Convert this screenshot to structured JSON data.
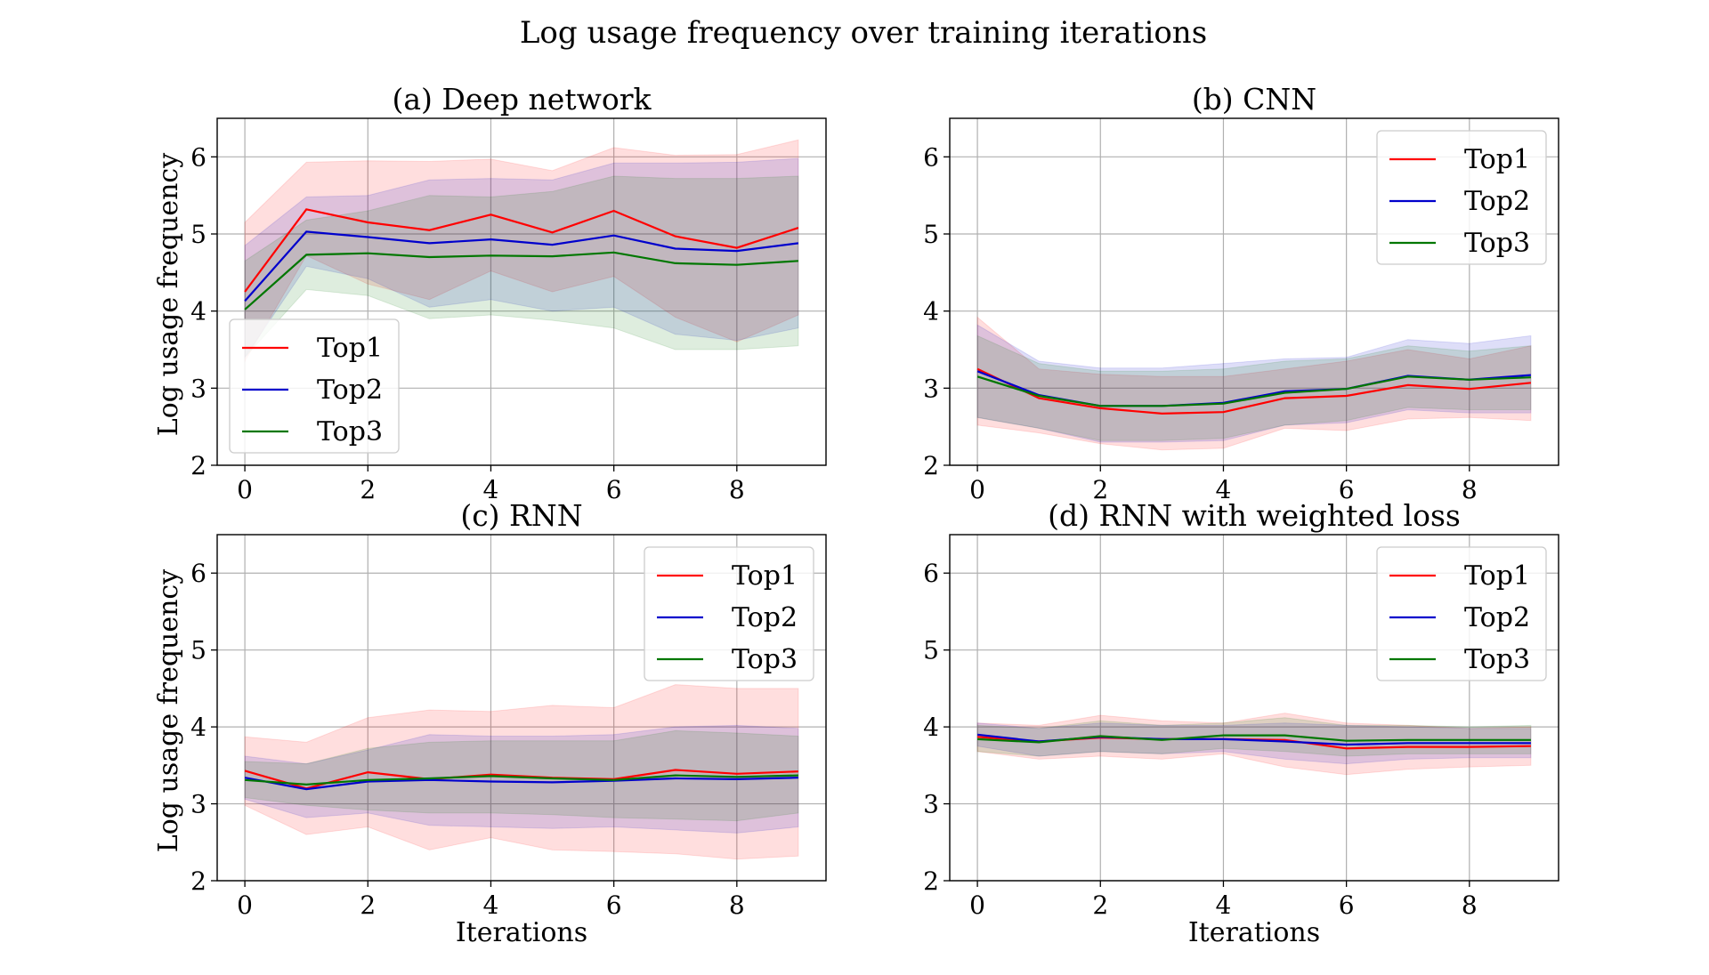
{
  "figure": {
    "title": "Log usage frequency over training iterations"
  },
  "chart_data": [
    {
      "type": "line",
      "title": "(a) Deep network",
      "xlabel": "",
      "ylabel": "Log usage frequency",
      "xlim": [
        -0.45,
        9.45
      ],
      "ylim": [
        2,
        6.5
      ],
      "xticks": [
        0,
        2,
        4,
        6,
        8
      ],
      "yticks": [
        2,
        3,
        4,
        5,
        6
      ],
      "grid": true,
      "legend": "lower-left",
      "x": [
        0,
        1,
        2,
        3,
        4,
        5,
        6,
        7,
        8,
        9
      ],
      "series": [
        {
          "name": "Top1",
          "color": "#ff0000",
          "values": [
            4.25,
            5.32,
            5.15,
            5.05,
            5.25,
            5.02,
            5.3,
            4.97,
            4.82,
            5.08
          ],
          "upper": [
            5.15,
            5.93,
            5.95,
            5.94,
            5.97,
            5.82,
            6.12,
            6.02,
            6.03,
            6.22
          ],
          "lower": [
            3.35,
            4.72,
            4.35,
            4.15,
            4.52,
            4.25,
            4.45,
            3.92,
            3.6,
            3.95
          ]
        },
        {
          "name": "Top2",
          "color": "#0000cc",
          "values": [
            4.13,
            5.03,
            4.96,
            4.88,
            4.93,
            4.86,
            4.98,
            4.81,
            4.78,
            4.88
          ],
          "upper": [
            4.85,
            5.48,
            5.5,
            5.7,
            5.72,
            5.7,
            5.92,
            5.92,
            5.93,
            5.98
          ],
          "lower": [
            3.4,
            4.58,
            4.42,
            4.05,
            4.15,
            4.0,
            4.05,
            3.7,
            3.62,
            3.78
          ]
        },
        {
          "name": "Top3",
          "color": "#007700",
          "values": [
            4.02,
            4.73,
            4.75,
            4.7,
            4.72,
            4.71,
            4.76,
            4.62,
            4.6,
            4.65
          ],
          "upper": [
            4.65,
            5.18,
            5.3,
            5.5,
            5.48,
            5.55,
            5.75,
            5.72,
            5.72,
            5.75
          ],
          "lower": [
            3.4,
            4.28,
            4.2,
            3.9,
            3.95,
            3.88,
            3.78,
            3.5,
            3.5,
            3.55
          ]
        }
      ]
    },
    {
      "type": "line",
      "title": "(b) CNN",
      "xlabel": "",
      "ylabel": "",
      "xlim": [
        -0.45,
        9.45
      ],
      "ylim": [
        2,
        6.5
      ],
      "xticks": [
        0,
        2,
        4,
        6,
        8
      ],
      "yticks": [
        2,
        3,
        4,
        5,
        6
      ],
      "grid": true,
      "legend": "upper-right",
      "x": [
        0,
        1,
        2,
        3,
        4,
        5,
        6,
        7,
        8,
        9
      ],
      "series": [
        {
          "name": "Top1",
          "color": "#ff0000",
          "values": [
            3.25,
            2.87,
            2.74,
            2.67,
            2.69,
            2.87,
            2.9,
            3.04,
            2.99,
            3.07
          ],
          "upper": [
            3.92,
            3.25,
            3.18,
            3.15,
            3.15,
            3.25,
            3.35,
            3.5,
            3.38,
            3.55
          ],
          "lower": [
            2.52,
            2.42,
            2.28,
            2.2,
            2.22,
            2.48,
            2.45,
            2.6,
            2.62,
            2.58
          ]
        },
        {
          "name": "Top2",
          "color": "#0000cc",
          "values": [
            3.22,
            2.91,
            2.77,
            2.77,
            2.81,
            2.96,
            2.99,
            3.16,
            3.11,
            3.17
          ],
          "upper": [
            3.82,
            3.35,
            3.26,
            3.26,
            3.32,
            3.38,
            3.4,
            3.63,
            3.58,
            3.68
          ],
          "lower": [
            2.62,
            2.48,
            2.3,
            2.3,
            2.32,
            2.52,
            2.55,
            2.72,
            2.68,
            2.68
          ]
        },
        {
          "name": "Top3",
          "color": "#007700",
          "values": [
            3.15,
            2.9,
            2.77,
            2.77,
            2.8,
            2.94,
            2.99,
            3.15,
            3.11,
            3.14
          ],
          "upper": [
            3.68,
            3.32,
            3.22,
            3.22,
            3.25,
            3.35,
            3.38,
            3.55,
            3.48,
            3.55
          ],
          "lower": [
            2.62,
            2.48,
            2.32,
            2.32,
            2.35,
            2.52,
            2.58,
            2.75,
            2.72,
            2.72
          ]
        }
      ]
    },
    {
      "type": "line",
      "title": "(c) RNN",
      "xlabel": "Iterations",
      "ylabel": "Log usage frequency",
      "xlim": [
        -0.45,
        9.45
      ],
      "ylim": [
        2,
        6.5
      ],
      "xticks": [
        0,
        2,
        4,
        6,
        8
      ],
      "yticks": [
        2,
        3,
        4,
        5,
        6
      ],
      "grid": true,
      "legend": "upper-right",
      "x": [
        0,
        1,
        2,
        3,
        4,
        5,
        6,
        7,
        8,
        9
      ],
      "series": [
        {
          "name": "Top1",
          "color": "#ff0000",
          "values": [
            3.43,
            3.2,
            3.41,
            3.32,
            3.38,
            3.34,
            3.32,
            3.44,
            3.39,
            3.42
          ],
          "upper": [
            3.87,
            3.8,
            4.12,
            4.22,
            4.2,
            4.28,
            4.25,
            4.55,
            4.5,
            4.5
          ],
          "lower": [
            2.98,
            2.6,
            2.7,
            2.4,
            2.56,
            2.4,
            2.38,
            2.35,
            2.28,
            2.32
          ]
        },
        {
          "name": "Top2",
          "color": "#0000cc",
          "values": [
            3.34,
            3.19,
            3.29,
            3.31,
            3.29,
            3.28,
            3.3,
            3.33,
            3.32,
            3.34
          ],
          "upper": [
            3.62,
            3.52,
            3.7,
            3.9,
            3.88,
            3.88,
            3.9,
            4.0,
            4.02,
            3.98
          ],
          "lower": [
            3.06,
            2.82,
            2.88,
            2.72,
            2.7,
            2.68,
            2.7,
            2.66,
            2.62,
            2.7
          ]
        },
        {
          "name": "Top3",
          "color": "#007700",
          "values": [
            3.31,
            3.25,
            3.31,
            3.33,
            3.36,
            3.33,
            3.31,
            3.37,
            3.35,
            3.37
          ],
          "upper": [
            3.55,
            3.52,
            3.72,
            3.8,
            3.82,
            3.82,
            3.82,
            3.95,
            3.92,
            3.88
          ],
          "lower": [
            3.08,
            2.98,
            2.92,
            2.88,
            2.88,
            2.86,
            2.82,
            2.8,
            2.78,
            2.88
          ]
        }
      ]
    },
    {
      "type": "line",
      "title": "(d) RNN with weighted loss",
      "xlabel": "Iterations",
      "ylabel": "",
      "xlim": [
        -0.45,
        9.45
      ],
      "ylim": [
        2,
        6.5
      ],
      "xticks": [
        0,
        2,
        4,
        6,
        8
      ],
      "yticks": [
        2,
        3,
        4,
        5,
        6
      ],
      "grid": true,
      "legend": "upper-right",
      "x": [
        0,
        1,
        2,
        3,
        4,
        5,
        6,
        7,
        8,
        9
      ],
      "series": [
        {
          "name": "Top1",
          "color": "#ff0000",
          "values": [
            3.87,
            3.81,
            3.86,
            3.84,
            3.84,
            3.83,
            3.72,
            3.74,
            3.74,
            3.75
          ],
          "upper": [
            4.05,
            4.02,
            4.15,
            4.08,
            4.05,
            4.18,
            4.05,
            4.02,
            3.98,
            4.0
          ],
          "lower": [
            3.68,
            3.58,
            3.62,
            3.58,
            3.65,
            3.48,
            3.38,
            3.45,
            3.48,
            3.5
          ]
        },
        {
          "name": "Top2",
          "color": "#0000cc",
          "values": [
            3.9,
            3.81,
            3.87,
            3.84,
            3.84,
            3.81,
            3.77,
            3.79,
            3.79,
            3.79
          ],
          "upper": [
            4.05,
            3.98,
            4.05,
            4.02,
            4.02,
            4.05,
            4.02,
            4.0,
            3.98,
            3.98
          ],
          "lower": [
            3.75,
            3.62,
            3.68,
            3.65,
            3.68,
            3.58,
            3.52,
            3.58,
            3.6,
            3.6
          ]
        },
        {
          "name": "Top3",
          "color": "#007700",
          "values": [
            3.84,
            3.8,
            3.88,
            3.83,
            3.89,
            3.89,
            3.82,
            3.83,
            3.83,
            3.83
          ],
          "upper": [
            4.02,
            3.98,
            4.08,
            4.02,
            4.05,
            4.12,
            4.02,
            4.02,
            4.0,
            4.02
          ],
          "lower": [
            3.68,
            3.62,
            3.68,
            3.65,
            3.72,
            3.68,
            3.62,
            3.65,
            3.65,
            3.65
          ]
        }
      ]
    }
  ]
}
